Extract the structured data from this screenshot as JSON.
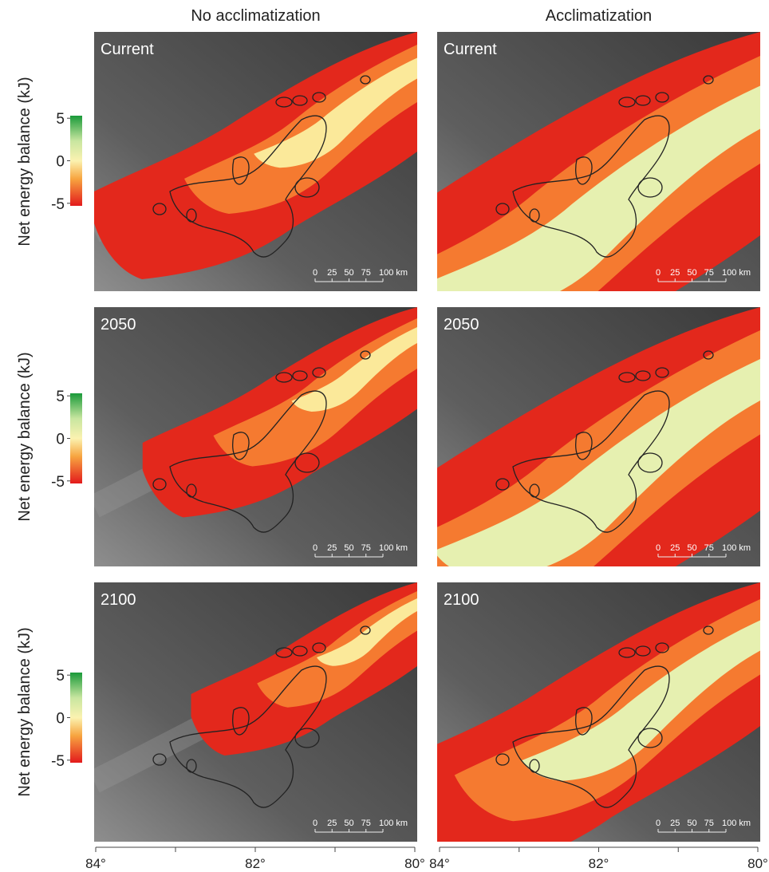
{
  "columns": [
    "No acclimatization",
    "Acclimatization"
  ],
  "rows": [
    "Current",
    "2050",
    "2100"
  ],
  "colorbar": {
    "label": "Net energy balance (kJ)",
    "lim": [
      -5.3,
      5.3
    ],
    "ticks": [
      5,
      0,
      -5
    ]
  },
  "scale_bar": {
    "lim": [
      0,
      100
    ],
    "ticks": [
      0,
      25,
      50,
      75,
      {
        "value": 100,
        "label": "100 km"
      }
    ]
  },
  "x_axis": {
    "lim": [
      84,
      80
    ],
    "ticks": [
      {
        "value": 84,
        "label": "84°"
      },
      {
        "value": 82,
        "label": "82°"
      },
      {
        "value": 80,
        "label": "80°"
      }
    ]
  }
}
